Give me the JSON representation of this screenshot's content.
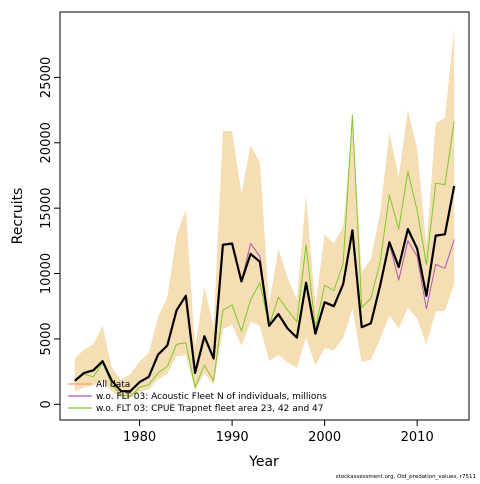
{
  "chart_data": {
    "type": "line",
    "xlabel": "Year",
    "ylabel": "Recruits",
    "xlim": [
      1971.4,
      2015.6
    ],
    "ylim": [
      -1200,
      30000
    ],
    "xticks": [
      1980,
      1990,
      2000,
      2010
    ],
    "xtick_labels": [
      "1980",
      "1990",
      "2000",
      "2010"
    ],
    "yticks": [
      0,
      5000,
      10000,
      15000,
      20000,
      25000
    ],
    "ytick_labels": [
      "0",
      "5000",
      "10000",
      "15000",
      "20000",
      "25000"
    ],
    "grid": false,
    "legend_position": "bottom-left",
    "footer": "stockassessment.org, Old_predation_values, r7511",
    "x": [
      1973,
      1974,
      1975,
      1976,
      1977,
      1978,
      1979,
      1980,
      1981,
      1982,
      1983,
      1984,
      1985,
      1986,
      1987,
      1988,
      1989,
      1990,
      1991,
      1992,
      1993,
      1994,
      1995,
      1996,
      1997,
      1998,
      1999,
      2000,
      2001,
      2002,
      2003,
      2004,
      2005,
      2006,
      2007,
      2008,
      2009,
      2010,
      2011,
      2012,
      2013,
      2014
    ],
    "band": {
      "color": "#f5deb3",
      "upper": [
        3500,
        4200,
        4600,
        6000,
        2800,
        1900,
        2300,
        3300,
        3900,
        6700,
        8200,
        12900,
        14900,
        4300,
        9000,
        5900,
        20900,
        20900,
        16100,
        19800,
        18500,
        7700,
        11900,
        9700,
        8000,
        16000,
        7500,
        13000,
        12300,
        13600,
        21500,
        10100,
        11100,
        14700,
        20800,
        17400,
        22500,
        19500,
        12100,
        21500,
        21900,
        28700
      ]
    },
    "series": [
      {
        "name": "All data",
        "color": "#000000",
        "width": 2.2,
        "values": [
          1800,
          2400,
          2600,
          3300,
          1800,
          1000,
          1000,
          1700,
          2100,
          3800,
          4500,
          7200,
          8300,
          2400,
          5200,
          3500,
          12200,
          12300,
          9400,
          11500,
          10900,
          6000,
          6900,
          5800,
          5100,
          9300,
          5400,
          7800,
          7500,
          9200,
          13300,
          5900,
          6200,
          9100,
          12400,
          10500,
          13400,
          11900,
          8300,
          12900,
          13000,
          16700
        ]
      },
      {
        "name": "w.o. FLT 03: Acoustic Fleet   N of individuals, millions",
        "color": "#b454b4",
        "width": 1,
        "values": [
          1800,
          2400,
          2600,
          3300,
          1800,
          1000,
          1000,
          1700,
          2100,
          3800,
          4500,
          7200,
          8300,
          2400,
          5200,
          3500,
          12200,
          12300,
          9400,
          12300,
          11300,
          6000,
          6900,
          5800,
          5100,
          9300,
          5400,
          7800,
          7500,
          9200,
          13300,
          5900,
          6200,
          9100,
          12300,
          9500,
          12500,
          11300,
          7300,
          10700,
          10400,
          12600
        ]
      },
      {
        "name": "w.o. FLT 03: CPUE Trapnet fleet area 23, 42 and 47",
        "color": "#7cc82a",
        "width": 1,
        "values": [
          1800,
          2300,
          2100,
          3200,
          1500,
          700,
          600,
          1300,
          1500,
          2400,
          2900,
          4600,
          4700,
          1300,
          3000,
          1800,
          7200,
          7600,
          5600,
          8000,
          9300,
          6000,
          8200,
          7200,
          6300,
          12200,
          5800,
          9100,
          8700,
          10800,
          22100,
          7400,
          8100,
          10900,
          16000,
          13400,
          17800,
          14800,
          10700,
          16900,
          16800,
          21600
        ]
      }
    ]
  }
}
